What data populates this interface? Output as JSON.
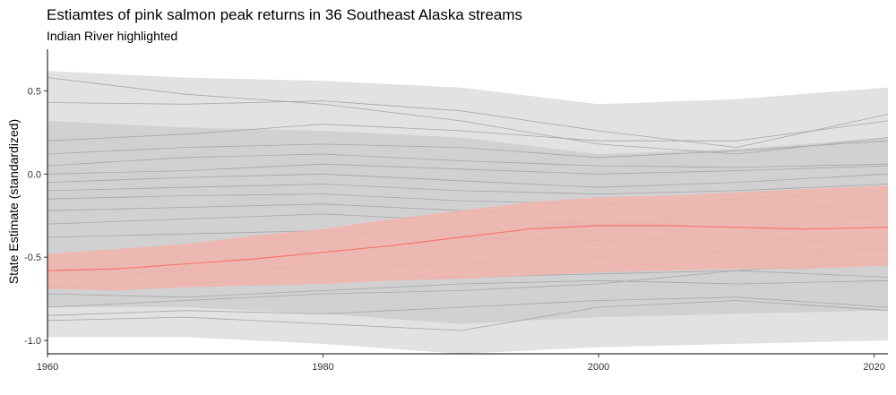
{
  "chart_data": {
    "type": "line",
    "title": "Estiamtes of pink salmon peak returns in 36 Southeast Alaska streams",
    "subtitle": "Indian River highlighted",
    "xlabel": "",
    "ylabel": "State Estimate (standardized)",
    "xlim": [
      1960,
      2021
    ],
    "ylim": [
      -1.08,
      0.75
    ],
    "x_ticks": [
      1960,
      1980,
      2000,
      2020
    ],
    "y_ticks": [
      0.5,
      0.0,
      -0.5,
      -1.0
    ],
    "y_tick_labels": [
      "0.5",
      "0.0",
      "-0.5",
      "-1.0"
    ],
    "grid": false,
    "colors": {
      "highlight": "#f8766d",
      "highlight_band": "#f2b3ad",
      "background_line": "#a6a6a6",
      "background_band": "#d6d6d6"
    },
    "highlight_series": {
      "x": [
        1960,
        1965,
        1970,
        1975,
        1980,
        1985,
        1990,
        1995,
        2000,
        2005,
        2010,
        2015,
        2021
      ],
      "y": [
        -0.58,
        -0.57,
        -0.54,
        -0.51,
        -0.47,
        -0.43,
        -0.38,
        -0.33,
        -0.31,
        -0.31,
        -0.32,
        -0.33,
        -0.32
      ],
      "lower": [
        -0.69,
        -0.7,
        -0.68,
        -0.67,
        -0.66,
        -0.64,
        -0.63,
        -0.61,
        -0.59,
        -0.58,
        -0.57,
        -0.57,
        -0.55
      ],
      "upper": [
        -0.48,
        -0.45,
        -0.42,
        -0.37,
        -0.33,
        -0.27,
        -0.22,
        -0.17,
        -0.14,
        -0.13,
        -0.11,
        -0.09,
        -0.07
      ]
    },
    "background_series": {
      "x": [
        1960,
        1970,
        1980,
        1990,
        2000,
        2010,
        2021
      ],
      "lines": [
        [
          0.58,
          0.48,
          0.42,
          0.32,
          0.18,
          0.12,
          0.22
        ],
        [
          0.43,
          0.42,
          0.44,
          0.38,
          0.26,
          0.16,
          0.36
        ],
        [
          0.2,
          0.24,
          0.3,
          0.26,
          0.2,
          0.2,
          0.32
        ],
        [
          0.12,
          0.16,
          0.18,
          0.16,
          0.1,
          0.14,
          0.2
        ],
        [
          0.05,
          0.1,
          0.12,
          0.08,
          0.05,
          0.04,
          0.06
        ],
        [
          0.0,
          0.02,
          0.06,
          0.03,
          0.0,
          0.02,
          0.05
        ],
        [
          -0.05,
          -0.02,
          0.0,
          -0.04,
          -0.08,
          -0.05,
          0.0
        ],
        [
          -0.1,
          -0.08,
          -0.06,
          -0.1,
          -0.12,
          -0.1,
          -0.06
        ],
        [
          -0.15,
          -0.13,
          -0.12,
          -0.16,
          -0.18,
          -0.15,
          -0.1
        ],
        [
          -0.22,
          -0.2,
          -0.18,
          -0.22,
          -0.24,
          -0.22,
          -0.18
        ],
        [
          -0.3,
          -0.27,
          -0.24,
          -0.28,
          -0.3,
          -0.28,
          -0.25
        ],
        [
          -0.38,
          -0.36,
          -0.34,
          -0.38,
          -0.4,
          -0.38,
          -0.42
        ],
        [
          -0.62,
          -0.58,
          -0.56,
          -0.54,
          -0.5,
          -0.46,
          -0.45
        ],
        [
          -0.68,
          -0.66,
          -0.62,
          -0.62,
          -0.6,
          -0.58,
          -0.62
        ],
        [
          -0.72,
          -0.74,
          -0.7,
          -0.66,
          -0.64,
          -0.66,
          -0.64
        ],
        [
          -0.8,
          -0.76,
          -0.72,
          -0.7,
          -0.66,
          -0.58,
          -0.52
        ],
        [
          -0.85,
          -0.82,
          -0.84,
          -0.8,
          -0.76,
          -0.74,
          -0.8
        ],
        [
          -0.88,
          -0.86,
          -0.9,
          -0.94,
          -0.8,
          -0.76,
          -0.82
        ]
      ],
      "band_upper": [
        0.62,
        0.58,
        0.56,
        0.52,
        0.42,
        0.45,
        0.52
      ],
      "band_lower": [
        -0.98,
        -0.98,
        -1.02,
        -1.08,
        -1.04,
        -1.02,
        -1.0
      ]
    }
  }
}
